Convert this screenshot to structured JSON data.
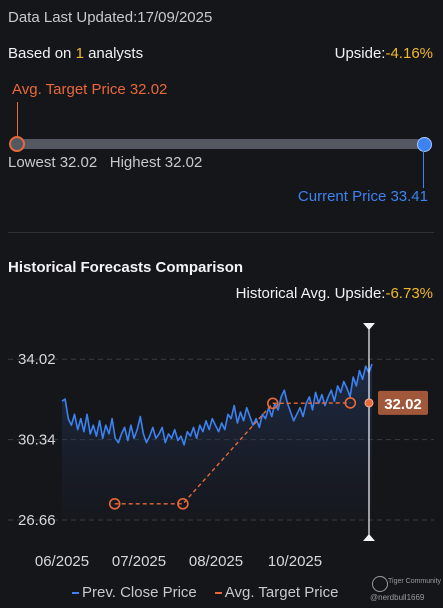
{
  "header": {
    "updated_prefix": "Data Last Updated:",
    "updated_date": "17/09/2025",
    "analysts_prefix": "Based on ",
    "analysts_count": "1",
    "analysts_suffix": " analysts",
    "upside_label": "Upside:",
    "upside_value": "-4.16%"
  },
  "range": {
    "avg_target_label": "Avg. Target Price 32.02",
    "lowest_label": "Lowest 32.02",
    "highest_label": "Highest 32.02",
    "current_label": "Current Price 33.41",
    "lowest": 32.02,
    "highest": 32.02,
    "avg_target": 32.02,
    "current": 33.41
  },
  "history": {
    "title": "Historical Forecasts Comparison",
    "upside_label": "Historical Avg. Upside:",
    "upside_value": "-6.73%"
  },
  "legend": {
    "prev_close": "Prev. Close Price",
    "avg_target": "Avg. Target Price"
  },
  "watermark": {
    "name": "Tiger Community",
    "user": "@nerdbull1669"
  },
  "colors": {
    "background": "#15161a",
    "price_line": "#3c82f0",
    "target_line": "#e8683a",
    "highlight": "#f1b92a",
    "badge": "#a0573a"
  },
  "chart_data": {
    "type": "line",
    "ylim": [
      26.66,
      34.9
    ],
    "yticks": [
      "34.02",
      "30.34",
      "26.66"
    ],
    "xticks": [
      "06/2025",
      "07/2025",
      "08/2025",
      "10/2025"
    ],
    "current_value_label": "32.02",
    "series": [
      {
        "name": "Prev. Close Price",
        "values": [
          32.1,
          32.2,
          31.3,
          31.0,
          31.5,
          30.8,
          31.3,
          30.7,
          31.5,
          30.6,
          31.0,
          30.5,
          31.2,
          30.4,
          31.0,
          30.6,
          31.3,
          30.4,
          30.2,
          30.6,
          30.9,
          30.3,
          31.0,
          30.4,
          30.8,
          31.4,
          30.6,
          30.2,
          30.5,
          30.9,
          30.4,
          30.6,
          30.9,
          30.2,
          30.6,
          30.4,
          30.8,
          30.3,
          30.5,
          30.1,
          30.7,
          30.5,
          30.9,
          30.4,
          31.0,
          30.7,
          31.2,
          30.8,
          31.3,
          31.0,
          30.7,
          31.1,
          30.8,
          31.5,
          31.3,
          31.9,
          31.1,
          31.6,
          31.2,
          31.8,
          31.4,
          31.0,
          31.3,
          30.9,
          31.5,
          31.3,
          31.8,
          31.4,
          32.0,
          31.7,
          32.3,
          32.6,
          32.0,
          31.6,
          31.2,
          31.5,
          31.8,
          31.4,
          32.0,
          32.3,
          31.7,
          32.5,
          32.0,
          32.4,
          31.9,
          32.3,
          32.6,
          32.1,
          32.8,
          32.5,
          33.0,
          32.7,
          32.3,
          33.2,
          32.8,
          33.5,
          33.1,
          33.7,
          33.4,
          33.8
        ]
      },
      {
        "name": "Avg. Target Price",
        "points": [
          {
            "x": 0.17,
            "y": 27.4
          },
          {
            "x": 0.39,
            "y": 27.4
          },
          {
            "x": 0.68,
            "y": 32.0
          },
          {
            "x": 0.93,
            "y": 32.02
          }
        ]
      }
    ]
  }
}
